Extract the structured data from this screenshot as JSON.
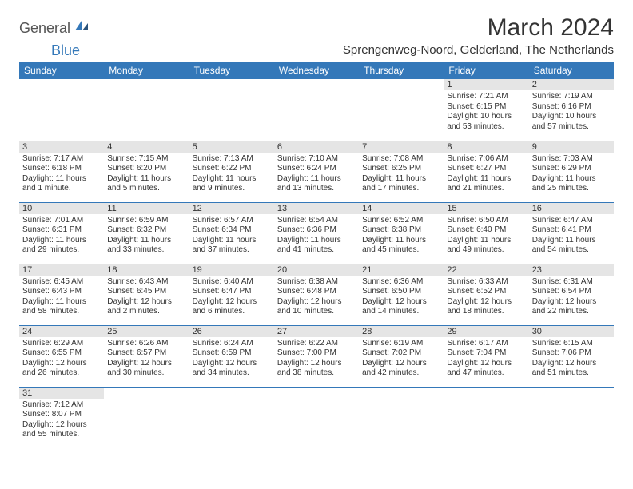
{
  "brand": {
    "part1": "General",
    "part2": "Blue"
  },
  "title": "March 2024",
  "location": "Sprengenweg-Noord, Gelderland, The Netherlands",
  "colors": {
    "header_bg": "#3478b9",
    "header_text": "#ffffff",
    "daynum_bg": "#e5e5e5",
    "text": "#333333",
    "rule": "#3478b9"
  },
  "weekdays": [
    "Sunday",
    "Monday",
    "Tuesday",
    "Wednesday",
    "Thursday",
    "Friday",
    "Saturday"
  ],
  "weeks": [
    [
      null,
      null,
      null,
      null,
      null,
      {
        "n": "1",
        "sr": "7:21 AM",
        "ss": "6:15 PM",
        "dl": "10 hours and 53 minutes."
      },
      {
        "n": "2",
        "sr": "7:19 AM",
        "ss": "6:16 PM",
        "dl": "10 hours and 57 minutes."
      }
    ],
    [
      {
        "n": "3",
        "sr": "7:17 AM",
        "ss": "6:18 PM",
        "dl": "11 hours and 1 minute."
      },
      {
        "n": "4",
        "sr": "7:15 AM",
        "ss": "6:20 PM",
        "dl": "11 hours and 5 minutes."
      },
      {
        "n": "5",
        "sr": "7:13 AM",
        "ss": "6:22 PM",
        "dl": "11 hours and 9 minutes."
      },
      {
        "n": "6",
        "sr": "7:10 AM",
        "ss": "6:24 PM",
        "dl": "11 hours and 13 minutes."
      },
      {
        "n": "7",
        "sr": "7:08 AM",
        "ss": "6:25 PM",
        "dl": "11 hours and 17 minutes."
      },
      {
        "n": "8",
        "sr": "7:06 AM",
        "ss": "6:27 PM",
        "dl": "11 hours and 21 minutes."
      },
      {
        "n": "9",
        "sr": "7:03 AM",
        "ss": "6:29 PM",
        "dl": "11 hours and 25 minutes."
      }
    ],
    [
      {
        "n": "10",
        "sr": "7:01 AM",
        "ss": "6:31 PM",
        "dl": "11 hours and 29 minutes."
      },
      {
        "n": "11",
        "sr": "6:59 AM",
        "ss": "6:32 PM",
        "dl": "11 hours and 33 minutes."
      },
      {
        "n": "12",
        "sr": "6:57 AM",
        "ss": "6:34 PM",
        "dl": "11 hours and 37 minutes."
      },
      {
        "n": "13",
        "sr": "6:54 AM",
        "ss": "6:36 PM",
        "dl": "11 hours and 41 minutes."
      },
      {
        "n": "14",
        "sr": "6:52 AM",
        "ss": "6:38 PM",
        "dl": "11 hours and 45 minutes."
      },
      {
        "n": "15",
        "sr": "6:50 AM",
        "ss": "6:40 PM",
        "dl": "11 hours and 49 minutes."
      },
      {
        "n": "16",
        "sr": "6:47 AM",
        "ss": "6:41 PM",
        "dl": "11 hours and 54 minutes."
      }
    ],
    [
      {
        "n": "17",
        "sr": "6:45 AM",
        "ss": "6:43 PM",
        "dl": "11 hours and 58 minutes."
      },
      {
        "n": "18",
        "sr": "6:43 AM",
        "ss": "6:45 PM",
        "dl": "12 hours and 2 minutes."
      },
      {
        "n": "19",
        "sr": "6:40 AM",
        "ss": "6:47 PM",
        "dl": "12 hours and 6 minutes."
      },
      {
        "n": "20",
        "sr": "6:38 AM",
        "ss": "6:48 PM",
        "dl": "12 hours and 10 minutes."
      },
      {
        "n": "21",
        "sr": "6:36 AM",
        "ss": "6:50 PM",
        "dl": "12 hours and 14 minutes."
      },
      {
        "n": "22",
        "sr": "6:33 AM",
        "ss": "6:52 PM",
        "dl": "12 hours and 18 minutes."
      },
      {
        "n": "23",
        "sr": "6:31 AM",
        "ss": "6:54 PM",
        "dl": "12 hours and 22 minutes."
      }
    ],
    [
      {
        "n": "24",
        "sr": "6:29 AM",
        "ss": "6:55 PM",
        "dl": "12 hours and 26 minutes."
      },
      {
        "n": "25",
        "sr": "6:26 AM",
        "ss": "6:57 PM",
        "dl": "12 hours and 30 minutes."
      },
      {
        "n": "26",
        "sr": "6:24 AM",
        "ss": "6:59 PM",
        "dl": "12 hours and 34 minutes."
      },
      {
        "n": "27",
        "sr": "6:22 AM",
        "ss": "7:00 PM",
        "dl": "12 hours and 38 minutes."
      },
      {
        "n": "28",
        "sr": "6:19 AM",
        "ss": "7:02 PM",
        "dl": "12 hours and 42 minutes."
      },
      {
        "n": "29",
        "sr": "6:17 AM",
        "ss": "7:04 PM",
        "dl": "12 hours and 47 minutes."
      },
      {
        "n": "30",
        "sr": "6:15 AM",
        "ss": "7:06 PM",
        "dl": "12 hours and 51 minutes."
      }
    ],
    [
      {
        "n": "31",
        "sr": "7:12 AM",
        "ss": "8:07 PM",
        "dl": "12 hours and 55 minutes."
      },
      null,
      null,
      null,
      null,
      null,
      null
    ]
  ],
  "labels": {
    "sunrise": "Sunrise: ",
    "sunset": "Sunset: ",
    "daylight": "Daylight: "
  }
}
